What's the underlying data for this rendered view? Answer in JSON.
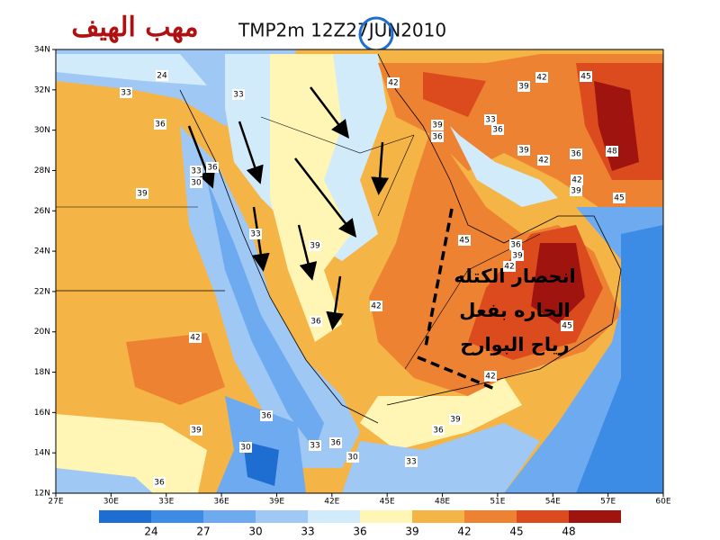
{
  "header": {
    "arabic_title": "مهب الهيف",
    "model_title": "TMP2m 12Z27JUN2010"
  },
  "map": {
    "lat_labels": [
      "12N",
      "14N",
      "16N",
      "18N",
      "20N",
      "22N",
      "24N",
      "26N",
      "28N",
      "30N",
      "32N",
      "34N"
    ],
    "lon_labels": [
      "27E",
      "30E",
      "33E",
      "36E",
      "39E",
      "42E",
      "45E",
      "48E",
      "51E",
      "54E",
      "57E",
      "60E"
    ],
    "contour_labels": [
      "24",
      "33",
      "33",
      "36",
      "33",
      "30",
      "36",
      "39",
      "39",
      "42",
      "42",
      "36",
      "42",
      "39",
      "36",
      "33",
      "36",
      "39",
      "42",
      "45",
      "39",
      "42",
      "36",
      "48",
      "42",
      "39",
      "45",
      "45",
      "36",
      "39",
      "42",
      "45",
      "42",
      "39",
      "36",
      "33",
      "30",
      "36",
      "33",
      "36",
      "30",
      "39",
      "36",
      "33"
    ],
    "annotation": [
      "انحصار الكتله",
      "الحاره بفعل",
      "رياح البوارح"
    ]
  },
  "colorbar": {
    "labels": [
      24,
      27,
      30,
      33,
      36,
      39,
      42,
      45,
      48
    ],
    "colors": [
      "#1e6ed2",
      "#3c8ce6",
      "#6eaaf0",
      "#a0c8f5",
      "#d2ebfa",
      "#fff5b4",
      "#f5b446",
      "#ed8232",
      "#dc4b1e",
      "#a0140f"
    ]
  }
}
